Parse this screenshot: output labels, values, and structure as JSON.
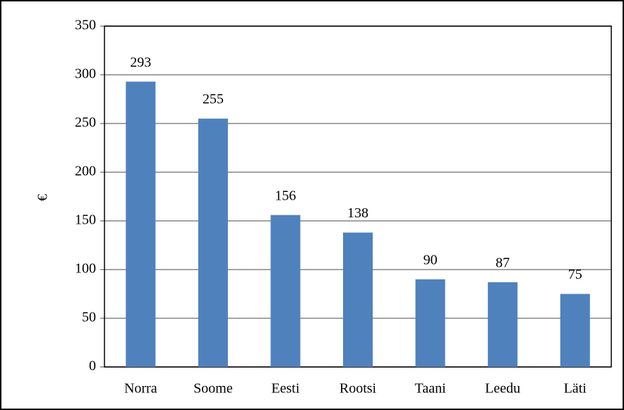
{
  "chart_data": {
    "type": "bar",
    "ylabel": "€",
    "categories": [
      "Norra",
      "Soome",
      "Eesti",
      "Rootsi",
      "Taani",
      "Leedu",
      "Läti"
    ],
    "values": [
      293,
      255,
      156,
      138,
      90,
      87,
      75
    ],
    "color": "#4f81bd",
    "ylim": [
      0,
      350
    ],
    "yticks": [
      0,
      50,
      100,
      150,
      200,
      250,
      300,
      350
    ],
    "grid": true
  }
}
